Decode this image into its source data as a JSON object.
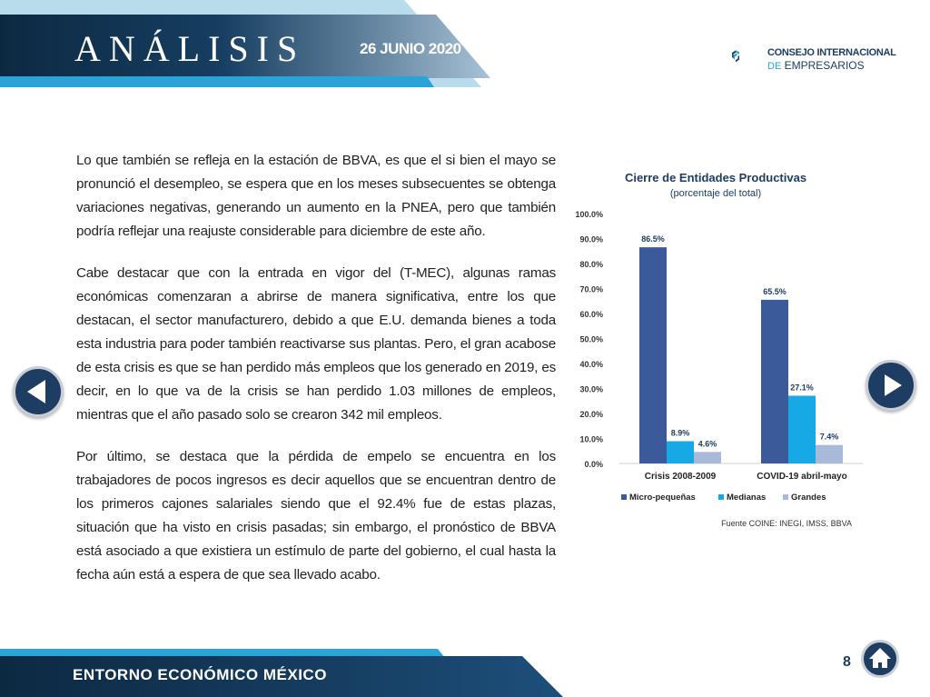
{
  "header": {
    "title": "ANÁLISIS",
    "date": "26 JUNIO 2020"
  },
  "logo": {
    "line1": "CONSEJO INTERNACIONAL",
    "line2_prefix": "DE",
    "line2": "EMPRESARIOS"
  },
  "body": {
    "p1": "Lo que también se refleja en la estación de BBVA, es que el si bien el mayo se pronunció el desempleo, se espera que en los meses subsecuentes se obtenga variaciones negativas, generando un aumento en la PNEA, pero que también podría reflejar una reajuste considerable para diciembre de este año.",
    "p2": "Cabe destacar que con la entrada en vigor del (T-MEC), algunas ramas económicas comenzaran a abrirse de manera significativa, entre los que destacan, el sector manufacturero, debido a que E.U. demanda bienes a toda esta industria para poder también reactivarse sus plantas. Pero, el gran acabose de esta crisis es que se han perdido más empleos que los generado en 2019, es decir, en lo que va de la crisis se han perdido 1.03 millones de empleos, mientras que el año pasado solo se crearon 342 mil empleos.",
    "p3": "Por último, se destaca que la pérdida de empelo se encuentra en los trabajadores de pocos ingresos es decir aquellos que se encuentran dentro de los primeros cajones salariales  siendo que el 92.4%  fue de estas plazas, situación que ha visto en crisis pasadas; sin embargo, el pronóstico de BBVA está asociado a que existiera un estímulo de parte del gobierno, el cual hasta la fecha aún está a espera de que sea llevado acabo."
  },
  "chart_data": {
    "type": "bar",
    "title": "Cierre de Entidades Productivas",
    "subtitle": "(porcentaje del total)",
    "categories": [
      "Crisis 2008-2009",
      "COVID-19 abril-mayo"
    ],
    "series": [
      {
        "name": "Micro-pequeñas",
        "values": [
          86.5,
          65.5
        ],
        "labels": [
          "86.5%",
          "65.5%"
        ],
        "color": "#3a5a99"
      },
      {
        "name": "Medianas",
        "values": [
          8.9,
          27.1
        ],
        "labels": [
          "8.9%",
          "27.1%"
        ],
        "color": "#17a9e6"
      },
      {
        "name": "Grandes",
        "values": [
          4.6,
          7.4
        ],
        "labels": [
          "4.6%",
          "7.4%"
        ],
        "color": "#a9b9d9"
      }
    ],
    "yticks": [
      "0.0%",
      "10.0%",
      "20.0%",
      "30.0%",
      "40.0%",
      "50.0%",
      "60.0%",
      "70.0%",
      "80.0%",
      "90.0%",
      "100.0%"
    ],
    "ylim": [
      0,
      100
    ],
    "legend": "bottom",
    "source": "Fuente COINE: INEGI, IMSS, BBVA"
  },
  "footer": {
    "text": "ENTORNO ECONÓMICO MÉXICO",
    "page": "8"
  },
  "icons": {
    "prev": "arrow-left-icon",
    "next": "arrow-right-icon",
    "home": "home-icon"
  },
  "colors": {
    "navy": "#1d3d63",
    "accent": "#2aa3d6"
  }
}
